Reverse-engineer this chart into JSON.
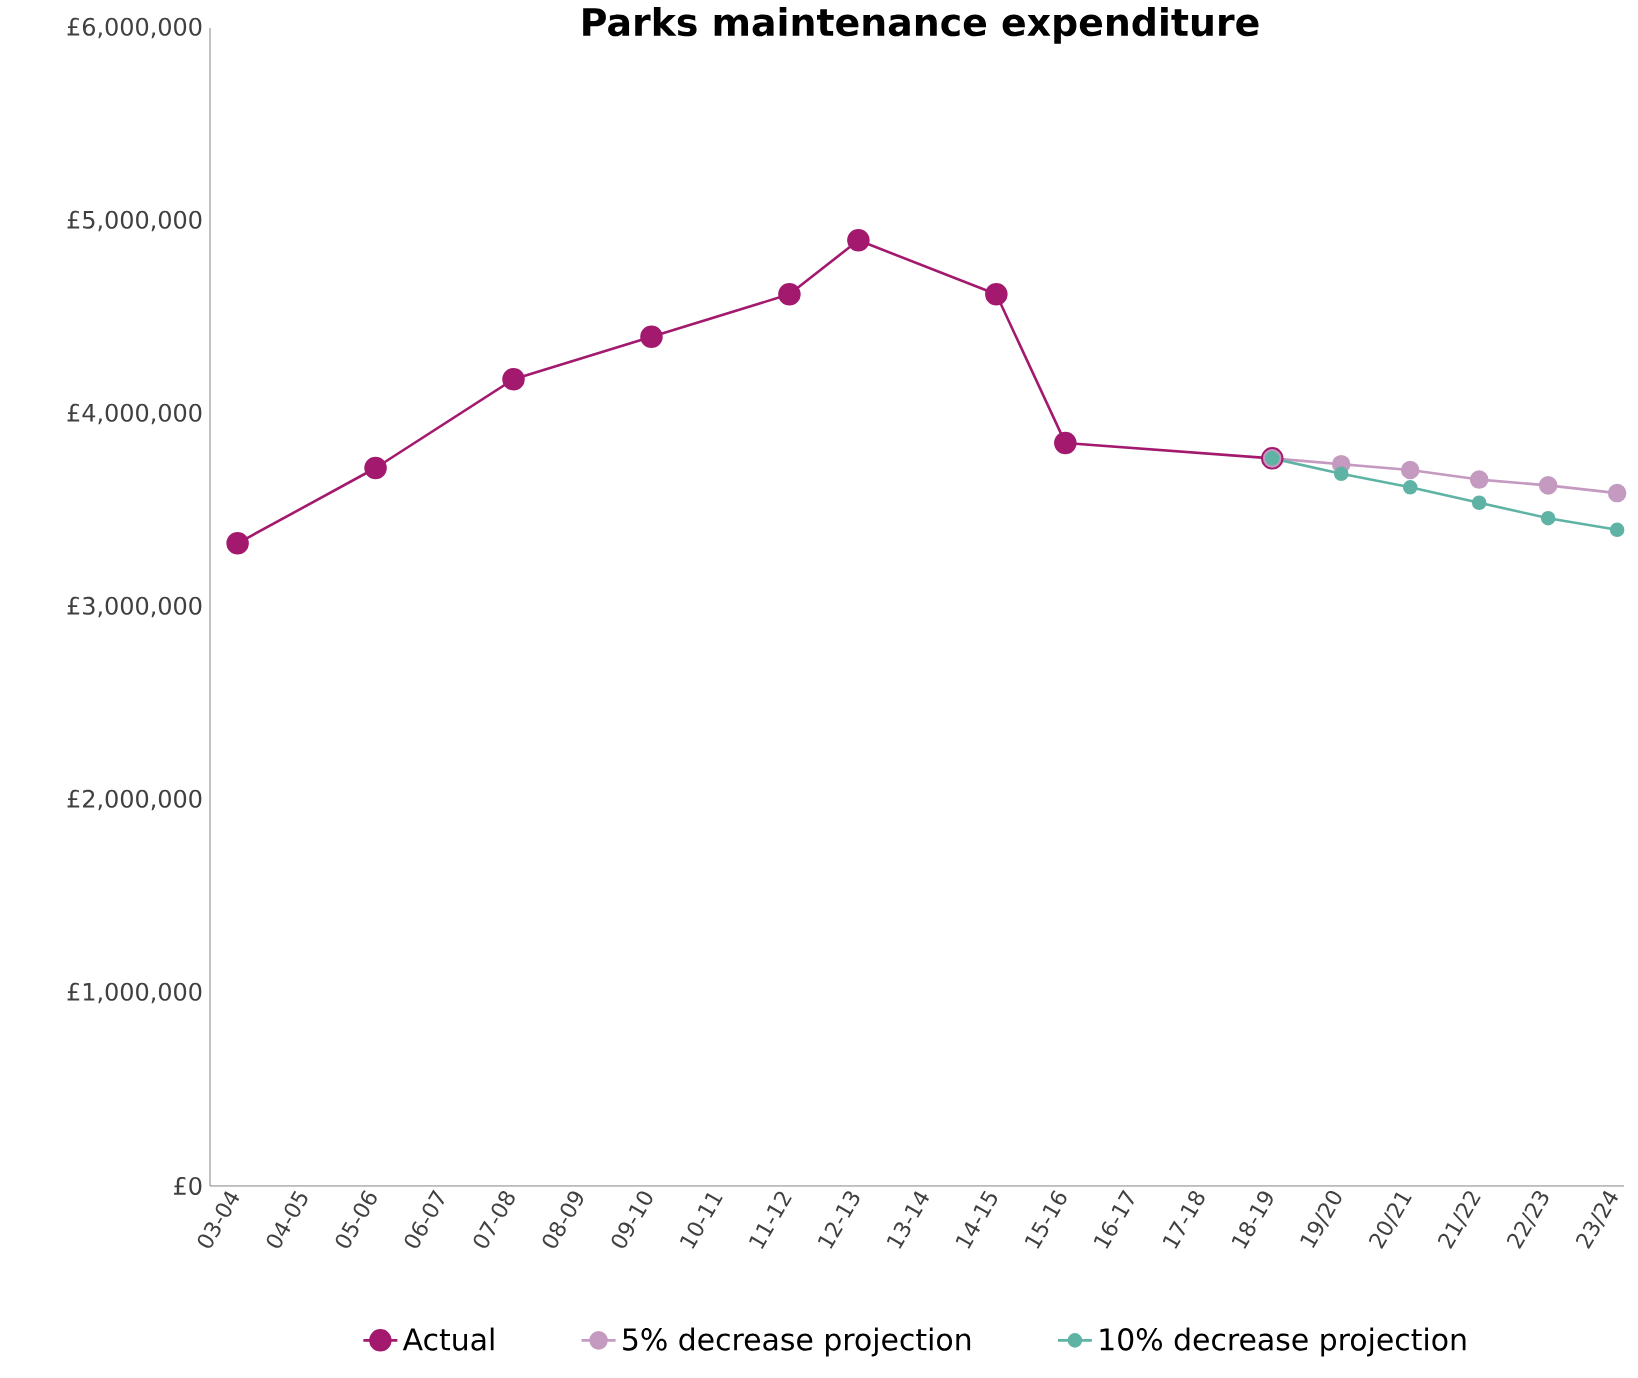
{
  "chart_data": {
    "type": "line",
    "title": "Parks maintenance expenditure",
    "categories": [
      "03-04",
      "04-05",
      "05-06",
      "06-07",
      "07-08",
      "08-09",
      "09-10",
      "10-11",
      "11-12",
      "12-13",
      "13-14",
      "14-15",
      "15-16",
      "16-17",
      "17-18",
      "18-19",
      "19/20",
      "20/21",
      "21/22",
      "22/23",
      "23/24"
    ],
    "series": [
      {
        "name": "Actual",
        "color": "#a3196e",
        "values": [
          3330000,
          null,
          3720000,
          null,
          4180000,
          null,
          4400000,
          null,
          4620000,
          4900000,
          null,
          4620000,
          3850000,
          null,
          null,
          3770000,
          null,
          null,
          null,
          null,
          null
        ]
      },
      {
        "name": "5% decrease projection",
        "color": "#c49ac0",
        "values": [
          null,
          null,
          null,
          null,
          null,
          null,
          null,
          null,
          null,
          null,
          null,
          null,
          null,
          null,
          null,
          3770000,
          3740000,
          3710000,
          3660000,
          3630000,
          3590000
        ]
      },
      {
        "name": "10% decrease projection",
        "color": "#5fb3a5",
        "values": [
          null,
          null,
          null,
          null,
          null,
          null,
          null,
          null,
          null,
          null,
          null,
          null,
          null,
          null,
          null,
          3770000,
          3690000,
          3620000,
          3540000,
          3460000,
          3400000
        ]
      }
    ],
    "ylim": [
      0,
      6000000
    ],
    "yticks": [
      {
        "value": 0,
        "label": "£0"
      },
      {
        "value": 1000000,
        "label": "£1,000,000"
      },
      {
        "value": 2000000,
        "label": "£2,000,000"
      },
      {
        "value": 3000000,
        "label": "£3,000,000"
      },
      {
        "value": 4000000,
        "label": "£4,000,000"
      },
      {
        "value": 5000000,
        "label": "£5,000,000"
      },
      {
        "value": 6000000,
        "label": "£6,000,000"
      }
    ],
    "marker": "circle",
    "line_style": "solid",
    "grid": false,
    "legend": "bottom"
  }
}
